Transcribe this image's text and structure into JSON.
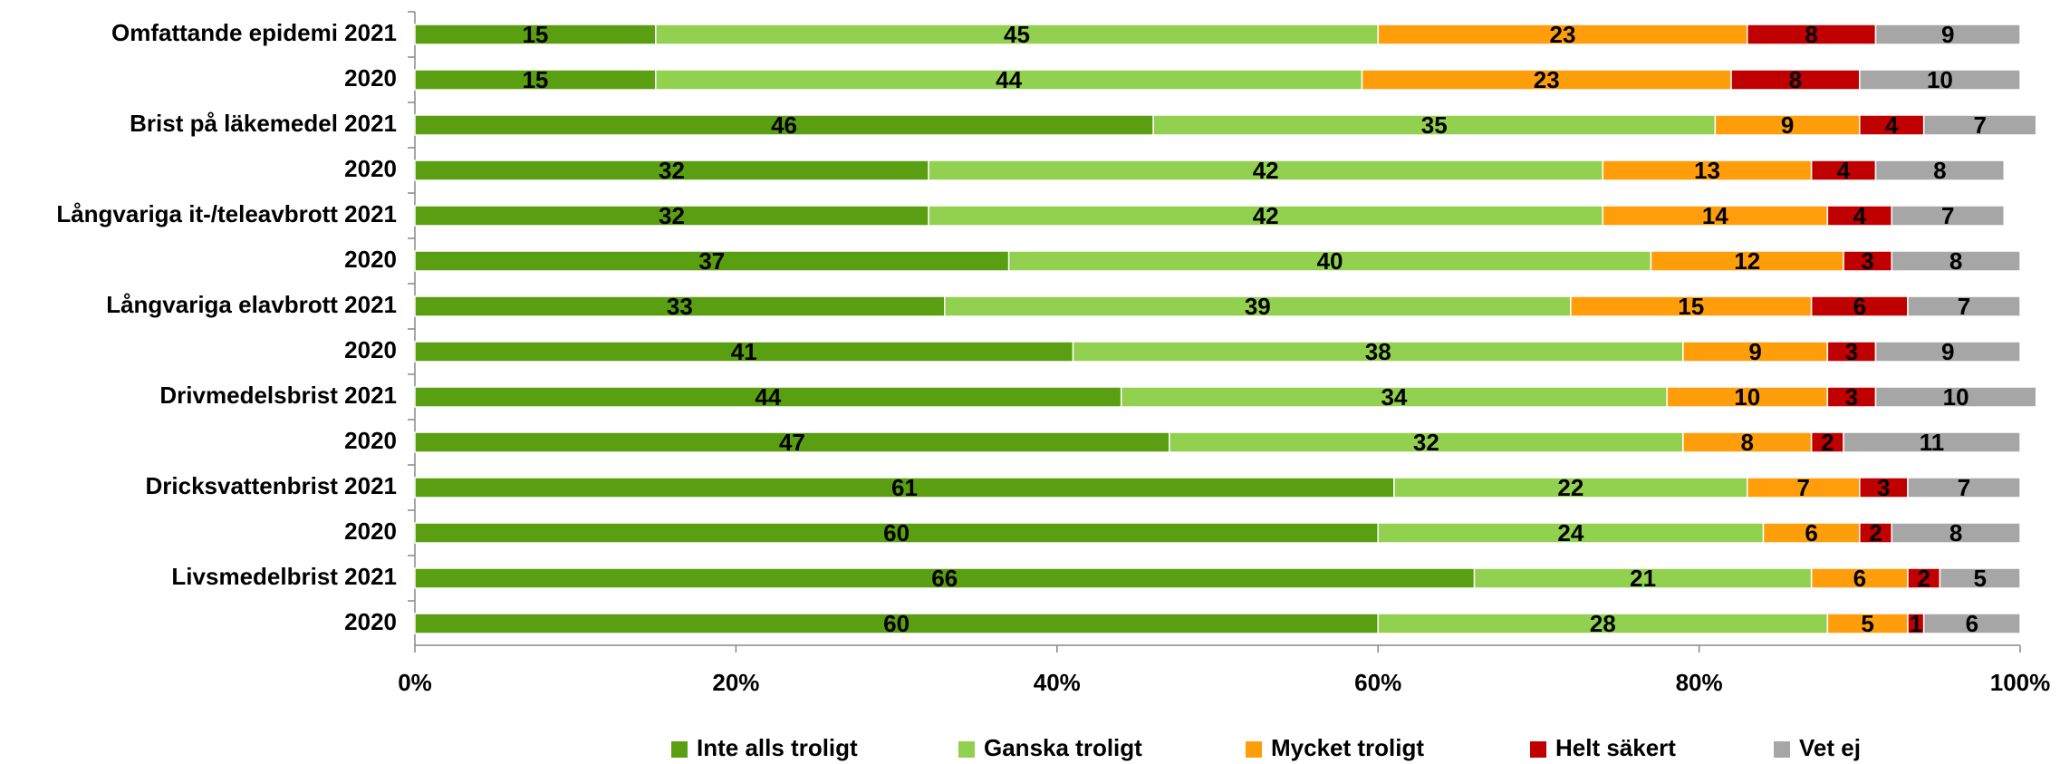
{
  "chart_data": {
    "type": "stacked_barh",
    "categories": [
      "Omfattande epidemi 2021",
      "2020",
      "Brist på läkemedel 2021",
      "2020",
      "Långvariga it-/teleavbrott 2021",
      "2020",
      "Långvariga elavbrott 2021",
      "2020",
      "Drivmedelsbrist 2021",
      "2020",
      "Dricksvattenbrist 2021",
      "2020",
      "Livsmedelbrist 2021",
      "2020"
    ],
    "series": [
      {
        "name": "Inte alls troligt",
        "color": "#5a9e12",
        "values": [
          15,
          15,
          46,
          32,
          32,
          37,
          33,
          41,
          44,
          47,
          61,
          60,
          66,
          60
        ]
      },
      {
        "name": "Ganska troligt",
        "color": "#92d050",
        "values": [
          45,
          44,
          35,
          42,
          42,
          40,
          39,
          38,
          34,
          32,
          22,
          24,
          21,
          28
        ]
      },
      {
        "name": "Mycket troligt",
        "color": "#ff9e0a",
        "values": [
          23,
          23,
          9,
          13,
          14,
          12,
          15,
          9,
          10,
          8,
          7,
          6,
          6,
          5
        ]
      },
      {
        "name": "Helt säkert",
        "color": "#c00000",
        "values": [
          8,
          8,
          4,
          4,
          4,
          3,
          6,
          3,
          3,
          2,
          3,
          2,
          2,
          1
        ]
      },
      {
        "name": "Vet ej",
        "color": "#a6a6a6",
        "values": [
          9,
          10,
          7,
          8,
          7,
          8,
          7,
          9,
          10,
          11,
          7,
          8,
          5,
          6
        ]
      }
    ],
    "xlim": [
      0,
      100
    ],
    "xticks": [
      {
        "value": 0,
        "label": "0%"
      },
      {
        "value": 20,
        "label": "20%"
      },
      {
        "value": 40,
        "label": "40%"
      },
      {
        "value": 60,
        "label": "60%"
      },
      {
        "value": 80,
        "label": "80%"
      },
      {
        "value": 100,
        "label": "100%"
      }
    ],
    "grid": false
  }
}
